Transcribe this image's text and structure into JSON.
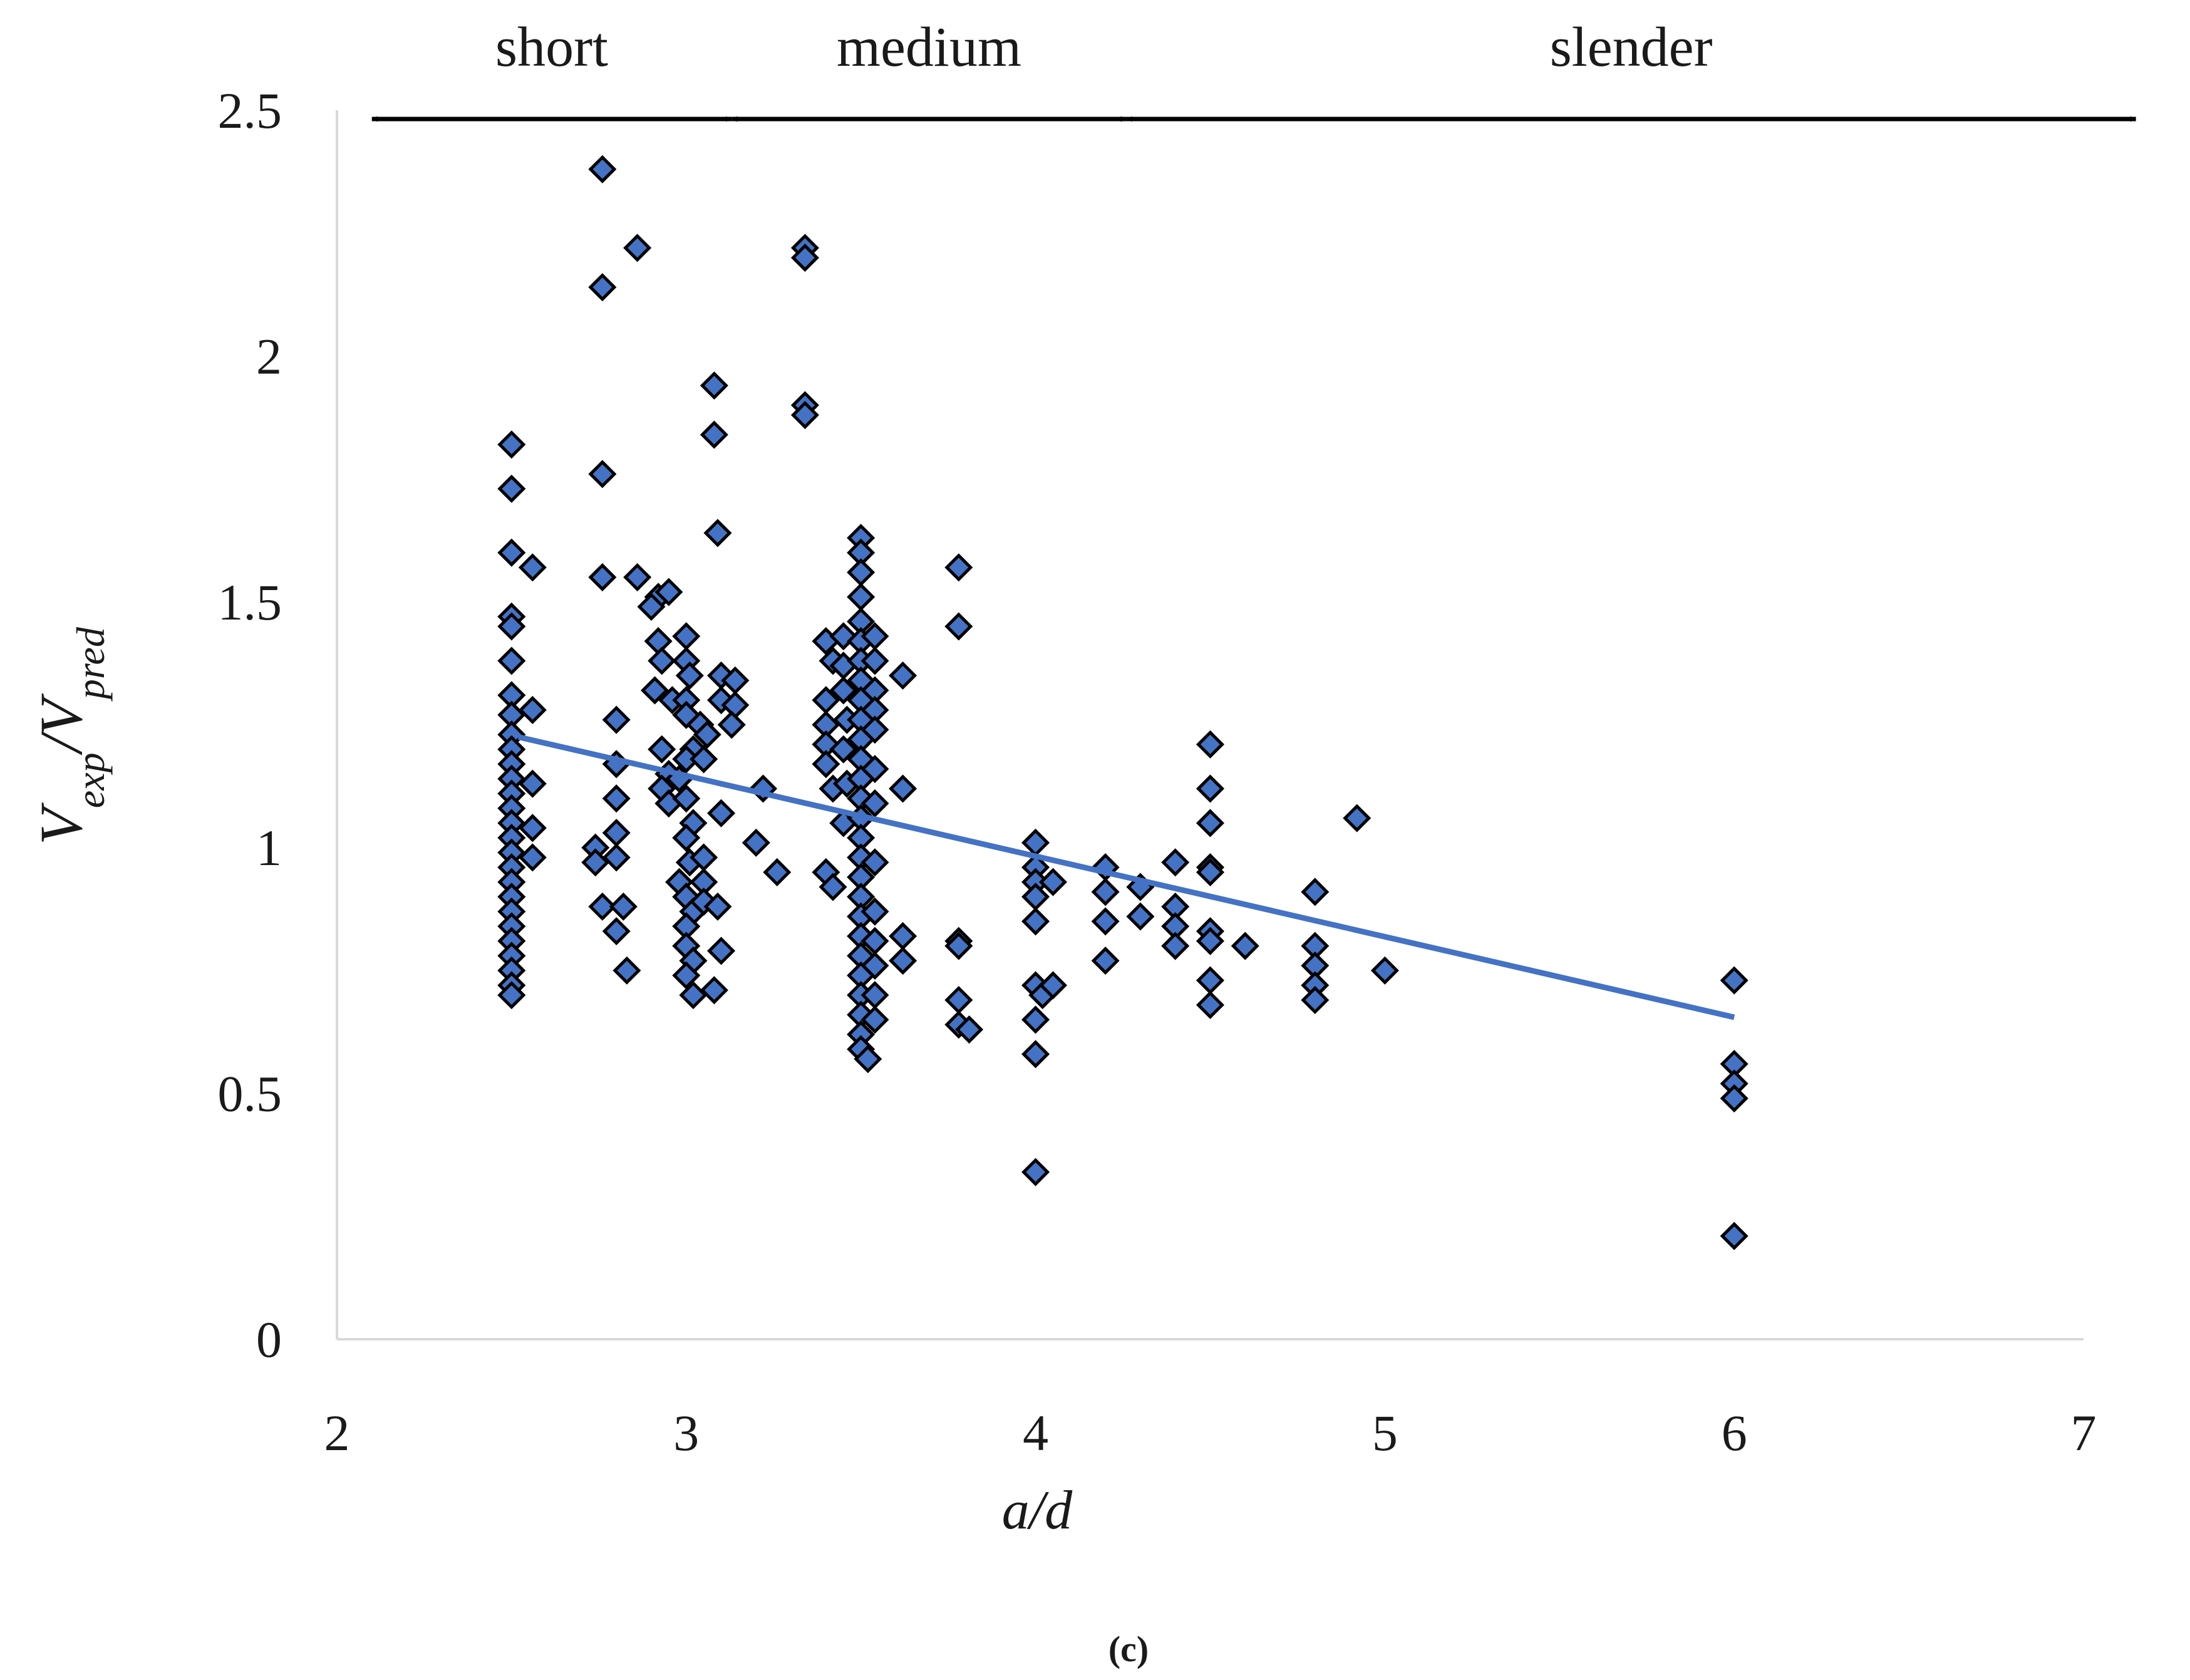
{
  "chart_data": {
    "type": "scatter",
    "title": "",
    "caption": "(c)",
    "xlabel": "a/d",
    "ylabel": {
      "base": "V",
      "sub1": "exp",
      "sep": "/",
      "base2": "V",
      "sub2": "pred"
    },
    "xlim": [
      2,
      7
    ],
    "ylim": [
      0,
      2.5
    ],
    "xticks": [
      "2",
      "3",
      "4",
      "5",
      "6",
      "7"
    ],
    "yticks": [
      "0",
      "0.5",
      "1",
      "1.5",
      "2",
      "2.5"
    ],
    "xtick_values": [
      2,
      3,
      4,
      5,
      6,
      7
    ],
    "ytick_values": [
      0,
      0.5,
      1,
      1.5,
      2,
      2.5
    ],
    "colors": {
      "marker": "#4472C4",
      "trend": "#4472C4",
      "axis": "#d9d9d9"
    },
    "regions": [
      {
        "label": "short",
        "from": 2.1,
        "to": 3.13
      },
      {
        "label": "medium",
        "from": 3.13,
        "to": 4.26
      },
      {
        "label": "slender",
        "from": 4.26,
        "to": 7.15
      }
    ],
    "trendline": {
      "x": [
        2.52,
        6.0
      ],
      "y": [
        1.225,
        0.655
      ]
    },
    "series": [
      {
        "name": "Vexp/Vpred",
        "points": [
          [
            2.5,
            1.82
          ],
          [
            2.5,
            1.73
          ],
          [
            2.5,
            1.6
          ],
          [
            2.5,
            1.47
          ],
          [
            2.5,
            1.45
          ],
          [
            2.5,
            1.38
          ],
          [
            2.5,
            1.31
          ],
          [
            2.5,
            1.27
          ],
          [
            2.5,
            1.23
          ],
          [
            2.5,
            1.2
          ],
          [
            2.5,
            1.17
          ],
          [
            2.5,
            1.14
          ],
          [
            2.5,
            1.11
          ],
          [
            2.5,
            1.08
          ],
          [
            2.5,
            1.05
          ],
          [
            2.5,
            1.02
          ],
          [
            2.5,
            0.99
          ],
          [
            2.5,
            0.96
          ],
          [
            2.5,
            0.93
          ],
          [
            2.5,
            0.9
          ],
          [
            2.5,
            0.87
          ],
          [
            2.5,
            0.84
          ],
          [
            2.5,
            0.81
          ],
          [
            2.5,
            0.78
          ],
          [
            2.5,
            0.75
          ],
          [
            2.5,
            0.72
          ],
          [
            2.5,
            0.7
          ],
          [
            2.56,
            1.57
          ],
          [
            2.56,
            1.28
          ],
          [
            2.56,
            1.13
          ],
          [
            2.56,
            1.04
          ],
          [
            2.56,
            0.98
          ],
          [
            2.76,
            2.38
          ],
          [
            2.76,
            2.14
          ],
          [
            2.76,
            1.76
          ],
          [
            2.76,
            1.55
          ],
          [
            2.86,
            2.22
          ],
          [
            2.86,
            1.55
          ],
          [
            2.74,
            1.0
          ],
          [
            2.74,
            0.97
          ],
          [
            2.76,
            0.88
          ],
          [
            2.8,
            1.26
          ],
          [
            2.8,
            1.17
          ],
          [
            2.8,
            1.1
          ],
          [
            2.8,
            1.03
          ],
          [
            2.8,
            0.98
          ],
          [
            2.82,
            0.88
          ],
          [
            2.8,
            0.83
          ],
          [
            2.83,
            0.75
          ],
          [
            2.92,
            1.51
          ],
          [
            2.95,
            1.52
          ],
          [
            2.9,
            1.49
          ],
          [
            2.92,
            1.42
          ],
          [
            2.93,
            1.38
          ],
          [
            2.91,
            1.32
          ],
          [
            2.96,
            1.3
          ],
          [
            2.93,
            1.2
          ],
          [
            2.95,
            1.15
          ],
          [
            2.93,
            1.12
          ],
          [
            2.95,
            1.09
          ],
          [
            3.0,
            1.43
          ],
          [
            3.0,
            1.38
          ],
          [
            3.01,
            1.35
          ],
          [
            3.0,
            1.3
          ],
          [
            3.0,
            1.27
          ],
          [
            3.02,
            1.2
          ],
          [
            3.0,
            1.18
          ],
          [
            2.98,
            1.14
          ],
          [
            3.0,
            1.1
          ],
          [
            3.02,
            1.05
          ],
          [
            3.0,
            1.02
          ],
          [
            3.01,
            0.97
          ],
          [
            2.98,
            0.93
          ],
          [
            3.0,
            0.9
          ],
          [
            3.02,
            0.87
          ],
          [
            3.0,
            0.84
          ],
          [
            3.0,
            0.8
          ],
          [
            3.02,
            0.77
          ],
          [
            3.0,
            0.74
          ],
          [
            3.02,
            0.7
          ],
          [
            3.04,
            1.25
          ],
          [
            3.06,
            1.23
          ],
          [
            3.05,
            1.18
          ],
          [
            3.05,
            0.98
          ],
          [
            3.05,
            0.93
          ],
          [
            3.05,
            0.89
          ],
          [
            3.08,
            1.94
          ],
          [
            3.08,
            1.84
          ],
          [
            3.09,
            1.64
          ],
          [
            3.1,
            1.35
          ],
          [
            3.1,
            1.3
          ],
          [
            3.1,
            1.07
          ],
          [
            3.09,
            0.88
          ],
          [
            3.1,
            0.79
          ],
          [
            3.08,
            0.71
          ],
          [
            3.14,
            1.34
          ],
          [
            3.14,
            1.29
          ],
          [
            3.13,
            1.25
          ],
          [
            3.22,
            1.12
          ],
          [
            3.2,
            1.01
          ],
          [
            3.26,
            0.95
          ],
          [
            3.34,
            2.22
          ],
          [
            3.34,
            2.2
          ],
          [
            3.34,
            1.9
          ],
          [
            3.34,
            1.88
          ],
          [
            3.4,
            1.42
          ],
          [
            3.42,
            1.38
          ],
          [
            3.4,
            1.3
          ],
          [
            3.4,
            1.25
          ],
          [
            3.4,
            1.21
          ],
          [
            3.4,
            1.17
          ],
          [
            3.42,
            1.12
          ],
          [
            3.4,
            0.95
          ],
          [
            3.42,
            0.92
          ],
          [
            3.45,
            1.43
          ],
          [
            3.45,
            1.37
          ],
          [
            3.45,
            1.32
          ],
          [
            3.46,
            1.26
          ],
          [
            3.45,
            1.2
          ],
          [
            3.46,
            1.13
          ],
          [
            3.45,
            1.05
          ],
          [
            3.5,
            1.63
          ],
          [
            3.5,
            1.6
          ],
          [
            3.5,
            1.56
          ],
          [
            3.5,
            1.51
          ],
          [
            3.5,
            1.46
          ],
          [
            3.5,
            1.42
          ],
          [
            3.5,
            1.38
          ],
          [
            3.5,
            1.34
          ],
          [
            3.5,
            1.3
          ],
          [
            3.5,
            1.26
          ],
          [
            3.5,
            1.22
          ],
          [
            3.5,
            1.18
          ],
          [
            3.5,
            1.14
          ],
          [
            3.5,
            1.1
          ],
          [
            3.5,
            1.06
          ],
          [
            3.5,
            1.02
          ],
          [
            3.5,
            0.98
          ],
          [
            3.5,
            0.94
          ],
          [
            3.5,
            0.9
          ],
          [
            3.5,
            0.86
          ],
          [
            3.5,
            0.82
          ],
          [
            3.5,
            0.78
          ],
          [
            3.5,
            0.74
          ],
          [
            3.5,
            0.7
          ],
          [
            3.5,
            0.66
          ],
          [
            3.5,
            0.62
          ],
          [
            3.5,
            0.59
          ],
          [
            3.52,
            0.57
          ],
          [
            3.54,
            1.43
          ],
          [
            3.54,
            1.38
          ],
          [
            3.54,
            1.32
          ],
          [
            3.54,
            1.28
          ],
          [
            3.54,
            1.24
          ],
          [
            3.54,
            1.16
          ],
          [
            3.54,
            1.09
          ],
          [
            3.54,
            0.97
          ],
          [
            3.54,
            0.87
          ],
          [
            3.54,
            0.81
          ],
          [
            3.54,
            0.76
          ],
          [
            3.54,
            0.7
          ],
          [
            3.54,
            0.65
          ],
          [
            3.62,
            1.35
          ],
          [
            3.62,
            1.12
          ],
          [
            3.62,
            0.82
          ],
          [
            3.62,
            0.77
          ],
          [
            3.78,
            1.57
          ],
          [
            3.78,
            1.45
          ],
          [
            3.78,
            0.81
          ],
          [
            3.78,
            0.8
          ],
          [
            3.78,
            0.69
          ],
          [
            3.78,
            0.64
          ],
          [
            3.81,
            0.63
          ],
          [
            4.0,
            1.01
          ],
          [
            4.0,
            0.96
          ],
          [
            4.0,
            0.93
          ],
          [
            4.0,
            0.9
          ],
          [
            4.0,
            0.85
          ],
          [
            4.0,
            0.72
          ],
          [
            4.0,
            0.65
          ],
          [
            4.0,
            0.58
          ],
          [
            4.0,
            0.34
          ],
          [
            4.02,
            0.7
          ],
          [
            4.05,
            0.93
          ],
          [
            4.05,
            0.72
          ],
          [
            4.2,
            0.96
          ],
          [
            4.2,
            0.91
          ],
          [
            4.2,
            0.85
          ],
          [
            4.2,
            0.77
          ],
          [
            4.3,
            0.92
          ],
          [
            4.3,
            0.86
          ],
          [
            4.4,
            0.97
          ],
          [
            4.4,
            0.88
          ],
          [
            4.4,
            0.84
          ],
          [
            4.4,
            0.8
          ],
          [
            4.5,
            1.21
          ],
          [
            4.5,
            1.12
          ],
          [
            4.5,
            1.05
          ],
          [
            4.5,
            0.96
          ],
          [
            4.5,
            0.95
          ],
          [
            4.5,
            0.83
          ],
          [
            4.5,
            0.81
          ],
          [
            4.5,
            0.73
          ],
          [
            4.5,
            0.68
          ],
          [
            4.6,
            0.8
          ],
          [
            4.8,
            0.91
          ],
          [
            4.8,
            0.8
          ],
          [
            4.8,
            0.76
          ],
          [
            4.8,
            0.72
          ],
          [
            4.8,
            0.69
          ],
          [
            4.92,
            1.06
          ],
          [
            5.0,
            0.75
          ],
          [
            6.0,
            0.73
          ],
          [
            6.0,
            0.56
          ],
          [
            6.0,
            0.52
          ],
          [
            6.0,
            0.49
          ],
          [
            6.0,
            0.21
          ]
        ]
      }
    ]
  }
}
